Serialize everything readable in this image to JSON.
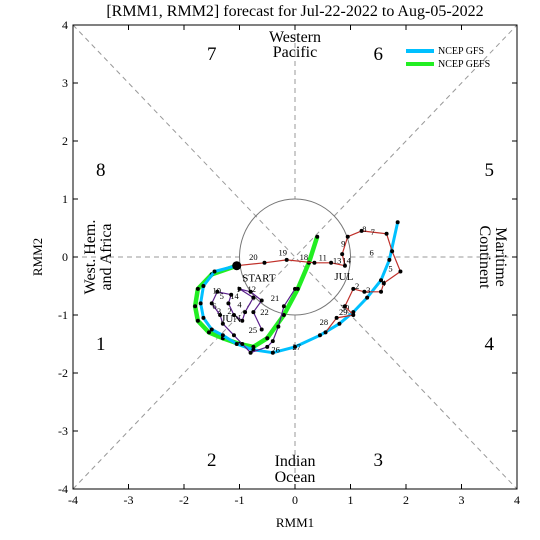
{
  "chart_data": {
    "type": "line",
    "title": "[RMM1, RMM2] forecast for Jul-22-2022 to Aug-05-2022",
    "xlabel": "RMM1",
    "ylabel": "RMM2",
    "xlim": [
      -4,
      4
    ],
    "ylim": [
      -4,
      4
    ],
    "xticks": [
      "-4",
      "-3",
      "-2",
      "-1",
      "0",
      "1",
      "2",
      "3",
      "4"
    ],
    "yticks": [
      "-4",
      "-3",
      "-2",
      "-1",
      "0",
      "1",
      "2",
      "3",
      "4"
    ],
    "unit_circle_radius": 1,
    "phases": [
      {
        "label": "1",
        "x": -3.5,
        "y": -1.5
      },
      {
        "label": "2",
        "x": -1.5,
        "y": -3.5
      },
      {
        "label": "3",
        "x": 1.5,
        "y": -3.5
      },
      {
        "label": "4",
        "x": 3.5,
        "y": -1.5
      },
      {
        "label": "5",
        "x": 3.5,
        "y": 1.5
      },
      {
        "label": "6",
        "x": 1.5,
        "y": 3.5
      },
      {
        "label": "7",
        "x": -1.5,
        "y": 3.5
      },
      {
        "label": "8",
        "x": -3.5,
        "y": 1.5
      }
    ],
    "regions": {
      "top": [
        "Western",
        "Pacific"
      ],
      "bottom": [
        "Indian",
        "Ocean"
      ],
      "left": [
        "West. Hem.",
        "and Africa"
      ],
      "right": [
        "Maritime",
        "Continent"
      ]
    },
    "annotations": {
      "start": "START",
      "jun": "JUN",
      "jul": "JUL"
    },
    "legend": {
      "placement": "top-right",
      "entries": [
        {
          "label": "NCEP GFS",
          "color": "#00c0ff"
        },
        {
          "label": "NCEP GEFS",
          "color": "#22ee22"
        }
      ]
    },
    "series": [
      {
        "id": "june",
        "color": "#5a1f8c",
        "x": [
          0.0,
          -0.2,
          -0.3,
          -0.4,
          -0.5,
          -0.8,
          -0.95,
          -1.1,
          -1.3,
          -1.35,
          -1.5,
          -1.4,
          -1.15,
          -1.2,
          -1.1,
          -0.95,
          -0.9,
          -0.75,
          -1.0,
          -0.8,
          -0.6,
          -0.75,
          -0.6
        ],
        "y": [
          -0.55,
          -0.85,
          -1.2,
          -1.45,
          -1.55,
          -1.65,
          -1.5,
          -1.35,
          -1.15,
          -1.0,
          -0.8,
          -0.6,
          -0.65,
          -0.8,
          -1.0,
          -1.1,
          -0.95,
          -0.7,
          -0.55,
          -0.6,
          -0.75,
          -0.95,
          -1.25
        ],
        "labels": [
          {
            "text": "1",
            "x": -1.02,
            "y": -0.6
          },
          {
            "text": "2",
            "x": -1.18,
            "y": -0.98
          },
          {
            "text": "3",
            "x": -1.37,
            "y": -0.98
          },
          {
            "text": "4",
            "x": -1.0,
            "y": -0.87
          },
          {
            "text": "5",
            "x": -1.32,
            "y": -0.72
          },
          {
            "text": "6",
            "x": -1.45,
            "y": -0.9
          },
          {
            "text": "10",
            "x": -1.41,
            "y": -0.63
          },
          {
            "text": "12",
            "x": -0.78,
            "y": -0.6
          },
          {
            "text": "14",
            "x": -1.09,
            "y": -0.72
          },
          {
            "text": "21",
            "x": -0.36,
            "y": -0.76
          },
          {
            "text": "22",
            "x": -0.55,
            "y": -1.0
          },
          {
            "text": "25",
            "x": -0.76,
            "y": -1.31
          },
          {
            "text": "26",
            "x": -0.35,
            "y": -1.65
          },
          {
            "text": "27",
            "x": 0.03,
            "y": -1.6
          },
          {
            "text": "28",
            "x": 0.52,
            "y": -1.17
          },
          {
            "text": "29",
            "x": 0.87,
            "y": -1.0
          },
          {
            "text": "30",
            "x": 0.9,
            "y": -0.92
          }
        ]
      },
      {
        "id": "july",
        "color": "#c0302a",
        "x": [
          -1.05,
          -0.55,
          -0.15,
          0.35,
          0.65,
          0.9,
          0.85,
          0.95,
          1.2,
          1.65,
          1.75,
          1.9,
          1.6,
          1.55,
          1.25,
          1.05,
          0.9,
          1.05,
          0.75,
          0.55
        ],
        "y": [
          -0.15,
          -0.1,
          -0.05,
          -0.1,
          -0.1,
          -0.15,
          0.05,
          0.35,
          0.45,
          0.4,
          0.1,
          -0.25,
          -0.45,
          -0.6,
          -0.6,
          -0.55,
          -0.85,
          -1.0,
          -1.05,
          -1.3
        ],
        "labels": [
          {
            "text": "20",
            "x": -0.75,
            "y": -0.05
          },
          {
            "text": "19",
            "x": -0.22,
            "y": 0.03
          },
          {
            "text": "18",
            "x": 0.16,
            "y": -0.05
          },
          {
            "text": "11",
            "x": 0.5,
            "y": -0.06
          },
          {
            "text": "13",
            "x": 0.76,
            "y": -0.11
          },
          {
            "text": "14",
            "x": 0.93,
            "y": -0.11
          },
          {
            "text": "9",
            "x": 0.87,
            "y": 0.18
          },
          {
            "text": "8",
            "x": 1.25,
            "y": 0.43
          },
          {
            "text": "7",
            "x": 1.4,
            "y": 0.38
          },
          {
            "text": "6",
            "x": 1.38,
            "y": 0.03
          },
          {
            "text": "5",
            "x": 1.72,
            "y": -0.25
          },
          {
            "text": "4",
            "x": 1.6,
            "y": -0.5
          },
          {
            "text": "3",
            "x": 1.32,
            "y": -0.62
          },
          {
            "text": "2",
            "x": 1.12,
            "y": -0.55
          }
        ]
      },
      {
        "id": "ncep-gfs",
        "color": "#00c0ff",
        "x": [
          -1.05,
          -1.45,
          -1.65,
          -1.7,
          -1.65,
          -1.5,
          -1.3,
          -1.05,
          -0.75,
          -0.4,
          0.0,
          0.45,
          0.8,
          1.05,
          1.3,
          1.55,
          1.7,
          1.85
        ],
        "y": [
          -0.15,
          -0.25,
          -0.5,
          -0.8,
          -1.05,
          -1.25,
          -1.35,
          -1.5,
          -1.6,
          -1.65,
          -1.55,
          -1.35,
          -1.15,
          -0.95,
          -0.7,
          -0.4,
          -0.05,
          0.6
        ]
      },
      {
        "id": "ncep-gefs",
        "color": "#22ee22",
        "x": [
          -1.05,
          -1.5,
          -1.75,
          -1.8,
          -1.75,
          -1.55,
          -1.3,
          -1.0,
          -0.75,
          -0.5,
          -0.2,
          0.05,
          0.25,
          0.4
        ],
        "y": [
          -0.15,
          -0.3,
          -0.55,
          -0.85,
          -1.1,
          -1.3,
          -1.4,
          -1.5,
          -1.55,
          -1.4,
          -1.0,
          -0.55,
          -0.1,
          0.35
        ]
      }
    ]
  }
}
